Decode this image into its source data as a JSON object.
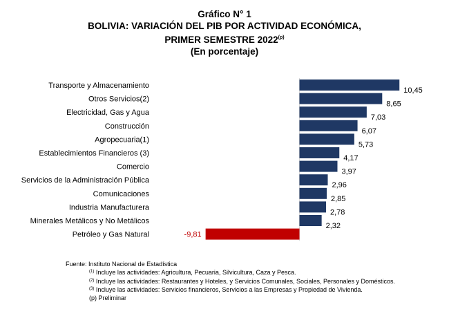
{
  "title": {
    "line1": "Gráfico N° 1",
    "line2": "BOLIVIA: VARIACIÓN DEL PIB POR ACTIVIDAD ECONÓMICA,",
    "line3": "PRIMER SEMESTRE 2022",
    "line3_sup": "(p)",
    "line4": "(En porcentaje)"
  },
  "chart_data": {
    "type": "bar",
    "orientation": "horizontal",
    "title": "BOLIVIA: VARIACIÓN DEL PIB POR ACTIVIDAD ECONÓMICA, PRIMER SEMESTRE 2022(p) (En porcentaje)",
    "categories": [
      "Transporte y Almacenamiento",
      "Otros Servicios(2)",
      "Electricidad, Gas y Agua",
      "Construcción",
      "Agropecuaria(1)",
      "Establecimientos Financieros (3)",
      "Comercio",
      "Servicios de la Administración Pública",
      "Comunicaciones",
      "Industria Manufacturera",
      "Minerales Metálicos y No Metálicos",
      "Petróleo y Gas Natural"
    ],
    "values": [
      10.45,
      8.65,
      7.03,
      6.07,
      5.73,
      4.17,
      3.97,
      2.96,
      2.85,
      2.78,
      2.32,
      -9.81
    ],
    "labels": [
      "10,45",
      "8,65",
      "7,03",
      "6,07",
      "5,73",
      "4,17",
      "3,97",
      "2,96",
      "2,85",
      "2,78",
      "2,32",
      "-9,81"
    ],
    "xlabel": "",
    "ylabel": "",
    "xlim": [
      -9.81,
      10.45
    ],
    "colors": {
      "positive": "#1f3864",
      "negative": "#c00000",
      "negative_label": "#c00000",
      "label": "#000000"
    }
  },
  "footnotes": {
    "source": "Fuente: Instituto Nacional de Estadística",
    "notes": [
      {
        "mark": "(1)",
        "text": " Incluye las actividades: Agricultura, Pecuaria, Silvicultura, Caza y Pesca."
      },
      {
        "mark": "(2)",
        "text": " Incluye las actividades: Restaurantes y Hoteles, y Servicios Comunales, Sociales, Personales y Domésticos."
      },
      {
        "mark": "(3)",
        "text": " Incluye las actividades: Servicios financieros, Servicios a las Empresas y Propiedad de Vivienda."
      }
    ],
    "preliminary": "(p) Preliminar"
  }
}
